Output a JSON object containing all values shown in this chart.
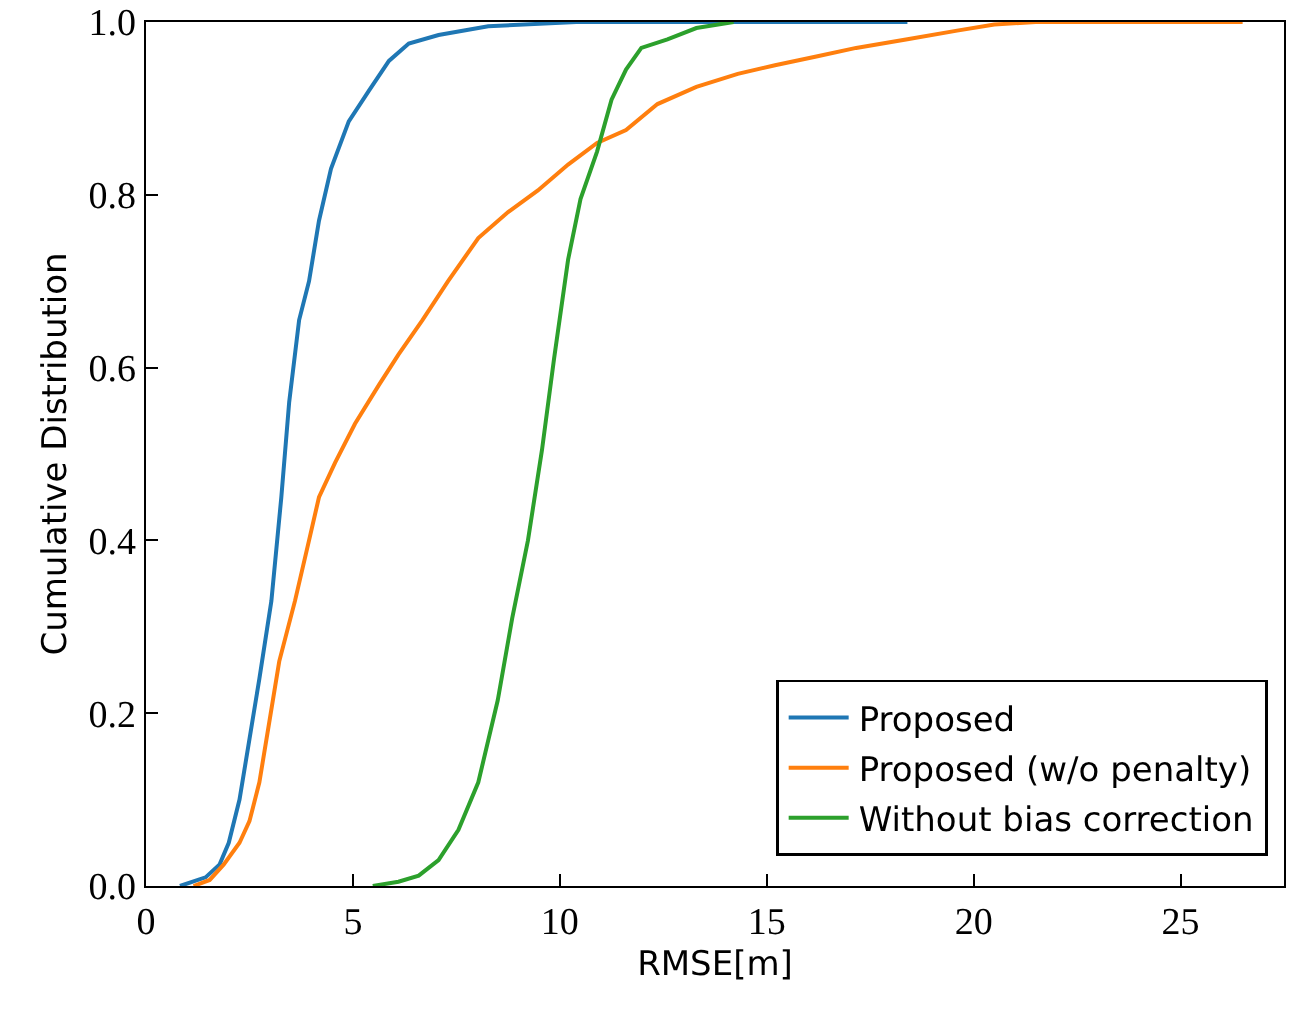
{
  "chart_data": {
    "type": "line",
    "xlabel": "RMSE[m]",
    "ylabel": "Cumulative Distribution",
    "xlim": [
      0,
      27.5
    ],
    "xticks": [
      0,
      5,
      10,
      15,
      20,
      25
    ],
    "ylim": [
      0,
      1
    ],
    "yticks": [
      {
        "value": 0,
        "label": "0.0"
      },
      0.2,
      0.4,
      0.6,
      0.8,
      {
        "value": 1,
        "label": "1.0"
      }
    ],
    "legend": "bottom right",
    "marker": "none",
    "line_style": "solid",
    "series": [
      {
        "name": "Proposed",
        "color": "#1f77b4",
        "x": [
          0.82,
          1.44,
          1.78,
          2.0,
          2.26,
          2.5,
          2.74,
          3.03,
          3.27,
          3.46,
          3.7,
          3.94,
          4.18,
          4.47,
          4.9,
          5.38,
          5.87,
          6.35,
          7.07,
          8.27,
          10.4,
          18.4
        ],
        "values": [
          0,
          0.01,
          0.025,
          0.05,
          0.1,
          0.17,
          0.24,
          0.33,
          0.45,
          0.56,
          0.655,
          0.7,
          0.77,
          0.83,
          0.885,
          0.92,
          0.955,
          0.975,
          0.985,
          0.995,
          1.0,
          1.0
        ]
      },
      {
        "name": "Proposed (w/o penalty)",
        "color": "#ff7f0e",
        "x": [
          1.15,
          1.54,
          1.88,
          2.26,
          2.5,
          2.74,
          2.98,
          3.22,
          3.6,
          3.94,
          4.18,
          4.57,
          5.05,
          5.63,
          6.1,
          6.68,
          7.3,
          8.03,
          8.75,
          9.47,
          10.2,
          10.9,
          11.6,
          12.36,
          13.3,
          14.3,
          15.2,
          16.2,
          17.16,
          18.4,
          19.6,
          20.5,
          21.5,
          26.5
        ],
        "values": [
          0,
          0.007,
          0.025,
          0.05,
          0.075,
          0.12,
          0.19,
          0.26,
          0.33,
          0.4,
          0.45,
          0.49,
          0.535,
          0.58,
          0.615,
          0.655,
          0.7,
          0.75,
          0.78,
          0.805,
          0.835,
          0.86,
          0.875,
          0.905,
          0.925,
          0.94,
          0.95,
          0.96,
          0.97,
          0.98,
          0.99,
          0.997,
          1.0,
          1.0
        ]
      },
      {
        "name": "Without bias correction",
        "color": "#2ca02c",
        "x": [
          5.48,
          6.1,
          6.59,
          7.07,
          7.55,
          8.03,
          8.5,
          8.85,
          9.23,
          9.57,
          9.86,
          10.2,
          10.5,
          10.9,
          11.25,
          11.6,
          11.97,
          12.6,
          13.3,
          14.2
        ],
        "values": [
          0,
          0.005,
          0.012,
          0.03,
          0.065,
          0.12,
          0.215,
          0.31,
          0.4,
          0.505,
          0.61,
          0.725,
          0.795,
          0.85,
          0.91,
          0.945,
          0.97,
          0.98,
          0.993,
          1.0
        ]
      }
    ]
  }
}
